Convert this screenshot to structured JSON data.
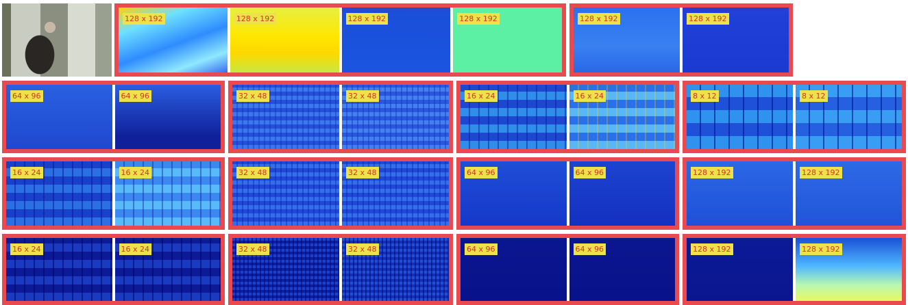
{
  "rows": [
    {
      "groups": [
        {
          "panels": [
            "128 x 192",
            "128 x 192",
            "128 x 192",
            "128 x 192"
          ]
        },
        {
          "panels": [
            "128 x 192",
            "128 x 192"
          ]
        }
      ]
    },
    {
      "groups": [
        {
          "panels": [
            "64 x 96",
            "64 x 96"
          ]
        },
        {
          "panels": [
            "32 x 48",
            "32 x 48"
          ]
        },
        {
          "panels": [
            "16 x 24",
            "16 x 24"
          ]
        },
        {
          "panels": [
            "8 x 12",
            "8 x 12"
          ]
        }
      ]
    },
    {
      "groups": [
        {
          "panels": [
            "16 x 24",
            "16 x 24"
          ]
        },
        {
          "panels": [
            "32 x 48",
            "32 x 48"
          ]
        },
        {
          "panels": [
            "64 x 96",
            "64 x 96"
          ]
        },
        {
          "panels": [
            "128 x 192",
            "128 x 192"
          ]
        }
      ]
    },
    {
      "groups": [
        {
          "panels": [
            "16 x 24",
            "16 x 24"
          ]
        },
        {
          "panels": [
            "32 x 48",
            "32 x 48"
          ]
        },
        {
          "panels": [
            "64 x 96",
            "64 x 96"
          ]
        },
        {
          "panels": [
            "128 x 192",
            "128 x 192"
          ]
        }
      ]
    }
  ]
}
